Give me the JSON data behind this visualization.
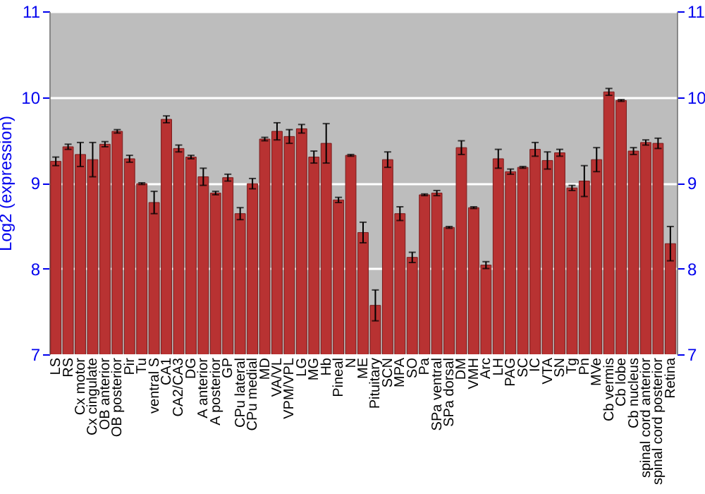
{
  "chart_data": {
    "type": "bar",
    "ylabel": "Log2 (expression)",
    "categories": [
      "LS",
      "RS",
      "Cx motor",
      "Cx cingulate",
      "OB anterior",
      "OB posterior",
      "Pir",
      "Tu",
      "ventral S",
      "CA1",
      "CA2/CA3",
      "DG",
      "A anterior",
      "A posterior",
      "GP",
      "CPu lateral",
      "CPu medial",
      "MD",
      "VA/VL",
      "VPM/VPL",
      "LG",
      "MG",
      "Hb",
      "Pineal",
      "N",
      "ME",
      "Pituitary",
      "SCN",
      "MPA",
      "SO",
      "Pa",
      "SPa ventral",
      "SPa dorsal",
      "DM",
      "VMH",
      "Arc",
      "LH",
      "PAG",
      "SC",
      "IC",
      "VTA",
      "SN",
      "Tg",
      "Pn",
      "MVe",
      "Cb vermis",
      "Cb lobe",
      "Cb nucleus",
      "spinal cord anterior",
      "spinal cord posterior",
      "Retina"
    ],
    "values": [
      9.25,
      9.42,
      9.33,
      9.27,
      9.45,
      9.6,
      9.28,
      8.99,
      8.77,
      9.74,
      9.4,
      9.3,
      9.07,
      8.88,
      9.06,
      8.64,
      8.99,
      9.51,
      9.6,
      9.54,
      9.63,
      9.3,
      9.46,
      8.8,
      9.32,
      8.42,
      7.57,
      9.27,
      8.64,
      8.13,
      8.86,
      8.88,
      8.48,
      9.41,
      8.71,
      8.04,
      9.28,
      9.13,
      9.18,
      9.39,
      9.26,
      9.35,
      8.94,
      9.02,
      9.27,
      10.06,
      9.96,
      9.37,
      9.47,
      9.46,
      8.29
    ],
    "errors": [
      0.05,
      0.03,
      0.14,
      0.2,
      0.03,
      0.02,
      0.04,
      0.01,
      0.13,
      0.04,
      0.04,
      0.02,
      0.1,
      0.02,
      0.04,
      0.07,
      0.06,
      0.02,
      0.1,
      0.08,
      0.05,
      0.07,
      0.23,
      0.03,
      0.01,
      0.12,
      0.18,
      0.09,
      0.08,
      0.06,
      0.01,
      0.03,
      0.01,
      0.08,
      0.01,
      0.04,
      0.11,
      0.03,
      0.01,
      0.08,
      0.1,
      0.04,
      0.03,
      0.18,
      0.14,
      0.04,
      0.01,
      0.04,
      0.03,
      0.06,
      0.2
    ],
    "color": "#b83232",
    "ylim": [
      7,
      11
    ],
    "yticks": [
      7,
      8,
      9,
      10,
      11
    ],
    "y2lim": [
      7,
      11
    ],
    "y2ticks": [
      7,
      8,
      9,
      10,
      11
    ],
    "grid": "y"
  }
}
